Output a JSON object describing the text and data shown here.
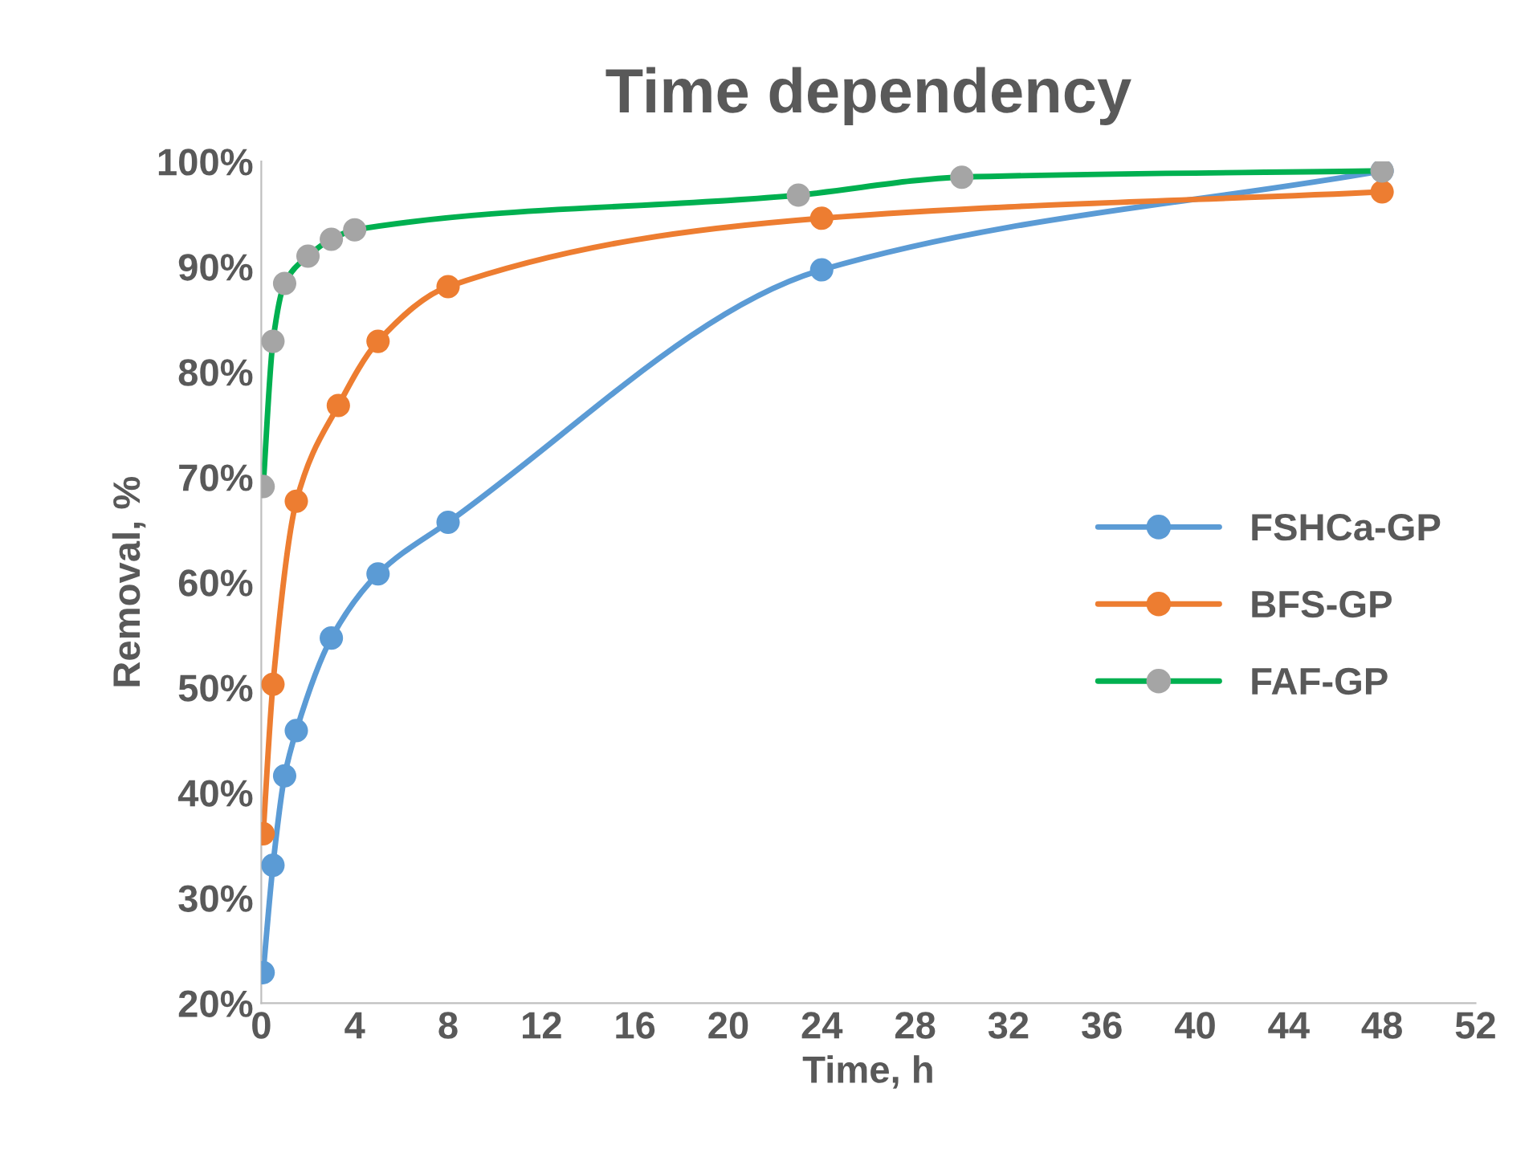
{
  "chart_data": {
    "type": "line",
    "title": "Time dependency",
    "xlabel": "Time, h",
    "ylabel": "Removal, %",
    "xlim": [
      0,
      52
    ],
    "xticks": [
      0,
      4,
      8,
      12,
      16,
      20,
      24,
      28,
      32,
      36,
      40,
      44,
      48,
      52
    ],
    "ylim": [
      20,
      100
    ],
    "yticks": [
      {
        "value": 20,
        "label": "20%"
      },
      {
        "value": 30,
        "label": "30%"
      },
      {
        "value": 40,
        "label": "40%"
      },
      {
        "value": 50,
        "label": "50%"
      },
      {
        "value": 60,
        "label": "60%"
      },
      {
        "value": 70,
        "label": "70%"
      },
      {
        "value": 80,
        "label": "80%"
      },
      {
        "value": 90,
        "label": "90%"
      },
      {
        "value": 100,
        "label": "100%"
      }
    ],
    "grid": false,
    "legend": "right",
    "marker": "circle",
    "line_style": "solid",
    "series": [
      {
        "name": "FSHCa-GP",
        "color": "#5b9bd5",
        "x": [
          0.08,
          0.5,
          1,
          1.5,
          3,
          5,
          8,
          24,
          48
        ],
        "values": [
          22.9,
          33.1,
          41.6,
          45.9,
          54.7,
          60.8,
          65.7,
          89.7,
          99.1
        ]
      },
      {
        "name": "BFS-GP",
        "color": "#ed7d31",
        "x": [
          0.08,
          0.5,
          1.5,
          3.3,
          5,
          8,
          24,
          48
        ],
        "values": [
          36.1,
          50.3,
          67.7,
          76.8,
          82.9,
          88.1,
          94.6,
          97.1
        ]
      },
      {
        "name": "FAF-GP",
        "color": "#00b050",
        "colors": [
          "#a5a5a5",
          "#a5a5a5",
          "#a5a5a5",
          "#a5a5a5",
          "#a5a5a5",
          "#a5a5a5",
          "#a5a5a5",
          "#a5a5a5",
          "#a5a5a5"
        ],
        "x": [
          0.08,
          0.5,
          1,
          2,
          3,
          4,
          23,
          30,
          48
        ],
        "values": [
          69.1,
          82.9,
          88.4,
          91.0,
          92.6,
          93.5,
          96.8,
          98.5,
          99.1
        ]
      }
    ]
  }
}
